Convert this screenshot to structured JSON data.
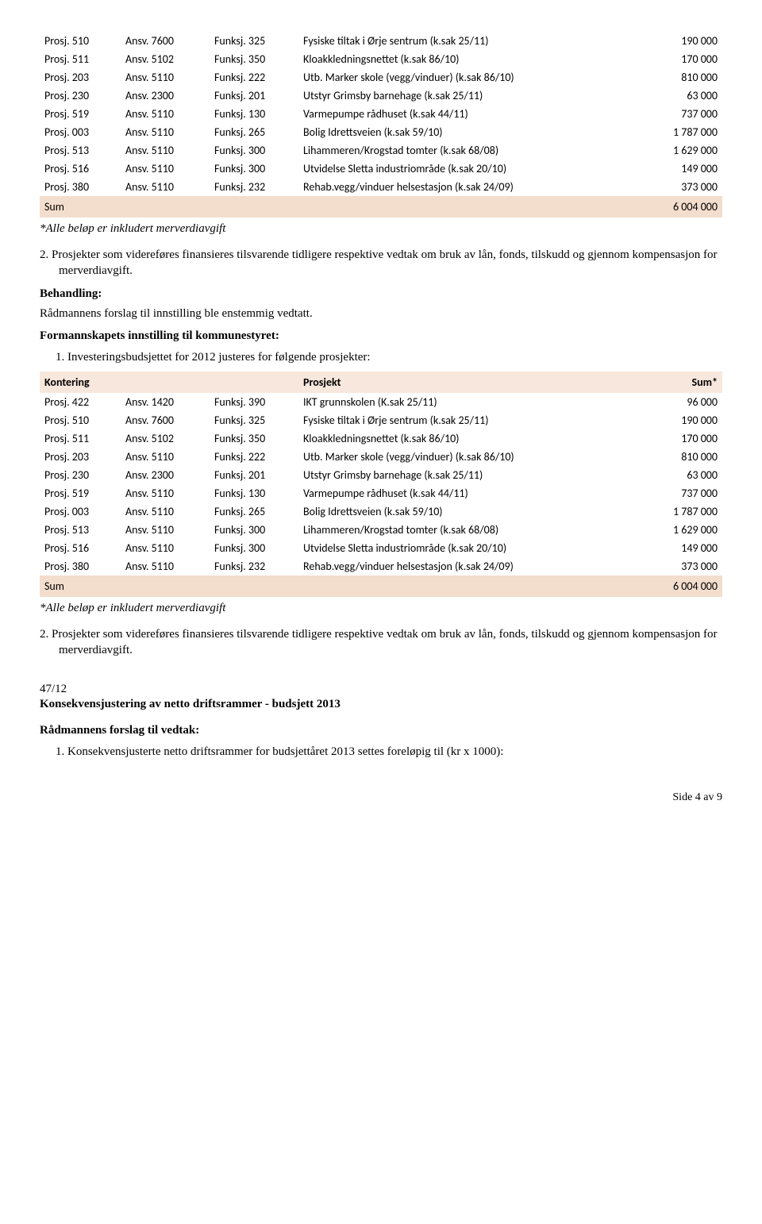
{
  "table1": {
    "rows": [
      [
        "Prosj. 510",
        "Ansv. 7600",
        "Funksj. 325",
        "Fysiske tiltak i Ørje sentrum (k.sak 25/11)",
        "190 000"
      ],
      [
        "Prosj. 511",
        "Ansv. 5102",
        "Funksj. 350",
        "Kloakkledningsnettet (k.sak 86/10)",
        "170 000"
      ],
      [
        "Prosj. 203",
        "Ansv. 5110",
        "Funksj. 222",
        "Utb. Marker skole (vegg/vinduer) (k.sak 86/10)",
        "810 000"
      ],
      [
        "Prosj. 230",
        "Ansv. 2300",
        "Funksj. 201",
        "Utstyr Grimsby barnehage (k.sak 25/11)",
        "63 000"
      ],
      [
        "Prosj. 519",
        "Ansv. 5110",
        "Funksj. 130",
        "Varmepumpe rådhuset (k.sak 44/11)",
        "737 000"
      ],
      [
        "Prosj. 003",
        "Ansv. 5110",
        "Funksj. 265",
        "Bolig Idrettsveien (k.sak 59/10)",
        "1 787 000"
      ],
      [
        "Prosj. 513",
        "Ansv. 5110",
        "Funksj. 300",
        "Lihammeren/Krogstad tomter (k.sak 68/08)",
        "1 629 000"
      ],
      [
        "Prosj. 516",
        "Ansv. 5110",
        "Funksj. 300",
        "Utvidelse Sletta industriområde (k.sak 20/10)",
        "149 000"
      ],
      [
        "Prosj. 380",
        "Ansv. 5110",
        "Funksj. 232",
        "Rehab.vegg/vinduer helsestasjon (k.sak 24/09)",
        "373 000"
      ]
    ],
    "sum_label": "Sum",
    "sum_value": "6 004 000"
  },
  "note1": "*Alle beløp er inkludert merverdiavgift",
  "item2": "2.  Prosjekter som videreføres finansieres tilsvarende tidligere respektive vedtak om bruk av lån, fonds, tilskudd og gjennom kompensasjon for merverdiavgift.",
  "behandling_label": "Behandling:",
  "behandling_text": "Rådmannens forslag til innstilling ble enstemmig vedtatt.",
  "formann_heading": "Formannskapets innstilling til kommunestyret:",
  "li1": "1.   Investeringsbudsjettet for 2012 justeres for følgende prosjekter:",
  "table2": {
    "header": [
      "Kontering",
      "",
      "",
      "Prosjekt",
      "Sum*"
    ],
    "rows": [
      [
        "Prosj. 422",
        "Ansv. 1420",
        "Funksj. 390",
        "IKT grunnskolen (K.sak 25/11)",
        "96 000"
      ],
      [
        "Prosj. 510",
        "Ansv. 7600",
        "Funksj. 325",
        "Fysiske tiltak i Ørje sentrum (k.sak 25/11)",
        "190 000"
      ],
      [
        "Prosj. 511",
        "Ansv. 5102",
        "Funksj. 350",
        "Kloakkledningsnettet (k.sak 86/10)",
        "170 000"
      ],
      [
        "Prosj. 203",
        "Ansv. 5110",
        "Funksj. 222",
        "Utb. Marker skole (vegg/vinduer) (k.sak 86/10)",
        "810 000"
      ],
      [
        "Prosj. 230",
        "Ansv. 2300",
        "Funksj. 201",
        "Utstyr Grimsby barnehage (k.sak 25/11)",
        "63 000"
      ],
      [
        "Prosj. 519",
        "Ansv. 5110",
        "Funksj. 130",
        "Varmepumpe rådhuset (k.sak 44/11)",
        "737 000"
      ],
      [
        "Prosj. 003",
        "Ansv. 5110",
        "Funksj. 265",
        "Bolig Idrettsveien (k.sak 59/10)",
        "1 787 000"
      ],
      [
        "Prosj. 513",
        "Ansv. 5110",
        "Funksj. 300",
        "Lihammeren/Krogstad tomter (k.sak 68/08)",
        "1 629 000"
      ],
      [
        "Prosj. 516",
        "Ansv. 5110",
        "Funksj. 300",
        "Utvidelse Sletta industriområde (k.sak 20/10)",
        "149 000"
      ],
      [
        "Prosj. 380",
        "Ansv. 5110",
        "Funksj. 232",
        "Rehab.vegg/vinduer helsestasjon (k.sak 24/09)",
        "373 000"
      ]
    ],
    "sum_label": "Sum",
    "sum_value": "6 004 000"
  },
  "note2": "*Alle beløp er inkludert merverdiavgift",
  "item2b": "2.      Prosjekter som videreføres finansieres tilsvarende tidligere respektive vedtak om bruk av lån, fonds, tilskudd og gjennom kompensasjon for merverdiavgift.",
  "section_num": "47/12",
  "section_title": "Konsekvensjustering av netto driftsrammer - budsjett 2013",
  "radmann_label": "Rådmannens forslag til vedtak:",
  "li_bottom": "1.   Konsekvensjusterte netto driftsrammer for budsjettåret 2013 settes foreløpig til (kr x 1000):",
  "pagenum": "Side 4 av 9"
}
